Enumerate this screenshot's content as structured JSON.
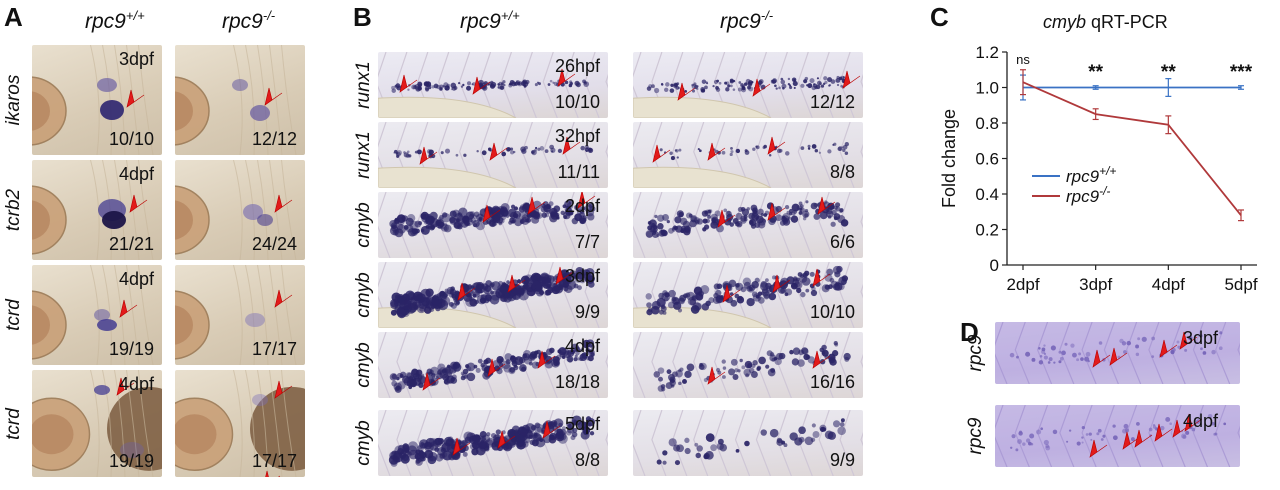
{
  "panels": {
    "A": {
      "label": "A",
      "col_headers": [
        {
          "gene": "rpc9",
          "sup": "+/+"
        },
        {
          "gene": "rpc9",
          "sup": "-/-"
        }
      ],
      "rows": [
        {
          "gene": "ikaros",
          "wt": {
            "stage": "3dpf",
            "count": "10/10"
          },
          "mut": {
            "stage": "",
            "count": "12/12"
          }
        },
        {
          "gene": "tcrb2",
          "wt": {
            "stage": "4dpf",
            "count": "21/21"
          },
          "mut": {
            "stage": "",
            "count": "24/24"
          }
        },
        {
          "gene": "tcrd",
          "wt": {
            "stage": "4dpf",
            "count": "19/19"
          },
          "mut": {
            "stage": "",
            "count": "17/17"
          }
        },
        {
          "gene": "tcrd",
          "wt": {
            "stage": "4dpf",
            "count": "19/19"
          },
          "mut": {
            "stage": "",
            "count": "17/17"
          }
        }
      ]
    },
    "B": {
      "label": "B",
      "col_headers": [
        {
          "gene": "rpc9",
          "sup": "+/+"
        },
        {
          "gene": "rpc9",
          "sup": "-/-"
        }
      ],
      "rows": [
        {
          "gene": "runx1",
          "wt": {
            "stage": "26hpf",
            "count": "10/10"
          },
          "mut": {
            "stage": "",
            "count": "12/12"
          }
        },
        {
          "gene": "runx1",
          "wt": {
            "stage": "32hpf",
            "count": "11/11"
          },
          "mut": {
            "stage": "",
            "count": "8/8"
          }
        },
        {
          "gene": "cmyb",
          "wt": {
            "stage": "2dpf",
            "count": "7/7"
          },
          "mut": {
            "stage": "",
            "count": "6/6"
          }
        },
        {
          "gene": "cmyb",
          "wt": {
            "stage": "3dpf",
            "count": "9/9"
          },
          "mut": {
            "stage": "",
            "count": "10/10"
          }
        },
        {
          "gene": "cmyb",
          "wt": {
            "stage": "4dpf",
            "count": "18/18"
          },
          "mut": {
            "stage": "",
            "count": "16/16"
          }
        },
        {
          "gene": "cmyb",
          "wt": {
            "stage": "5dpf",
            "count": "8/8"
          },
          "mut": {
            "stage": "",
            "count": "9/9"
          }
        }
      ]
    },
    "C": {
      "label": "C",
      "title_gene": "cmyb",
      "title_rest": " qRT-PCR"
    },
    "D": {
      "label": "D",
      "rows": [
        {
          "gene": "rpc9",
          "stage": "3dpf"
        },
        {
          "gene": "rpc9",
          "stage": "4dpf"
        }
      ]
    }
  },
  "chart_data": {
    "type": "line",
    "title": "cmyb qRT-PCR",
    "xlabel": "",
    "ylabel": "Fold change",
    "categories": [
      "2dpf",
      "3dpf",
      "4dpf",
      "5dpf"
    ],
    "ylim": [
      0,
      1.2
    ],
    "yticks": [
      "0",
      "0.2",
      "0.4",
      "0.6",
      "0.8",
      "1.0",
      "1.2"
    ],
    "series": [
      {
        "name": "rpc9+/+",
        "gene": "rpc9",
        "sup": "+/+",
        "color": "#3a72c4",
        "values": [
          1.0,
          1.0,
          1.0,
          1.0
        ],
        "errors": [
          0.07,
          0.01,
          0.05,
          0.01
        ]
      },
      {
        "name": "rpc9-/-",
        "gene": "rpc9",
        "sup": "-/-",
        "color": "#b0393b",
        "values": [
          1.03,
          0.85,
          0.79,
          0.28
        ],
        "errors": [
          0.07,
          0.03,
          0.05,
          0.03
        ]
      }
    ],
    "significance": [
      "ns",
      "**",
      "**",
      "***"
    ],
    "legend_position": "center-left"
  }
}
